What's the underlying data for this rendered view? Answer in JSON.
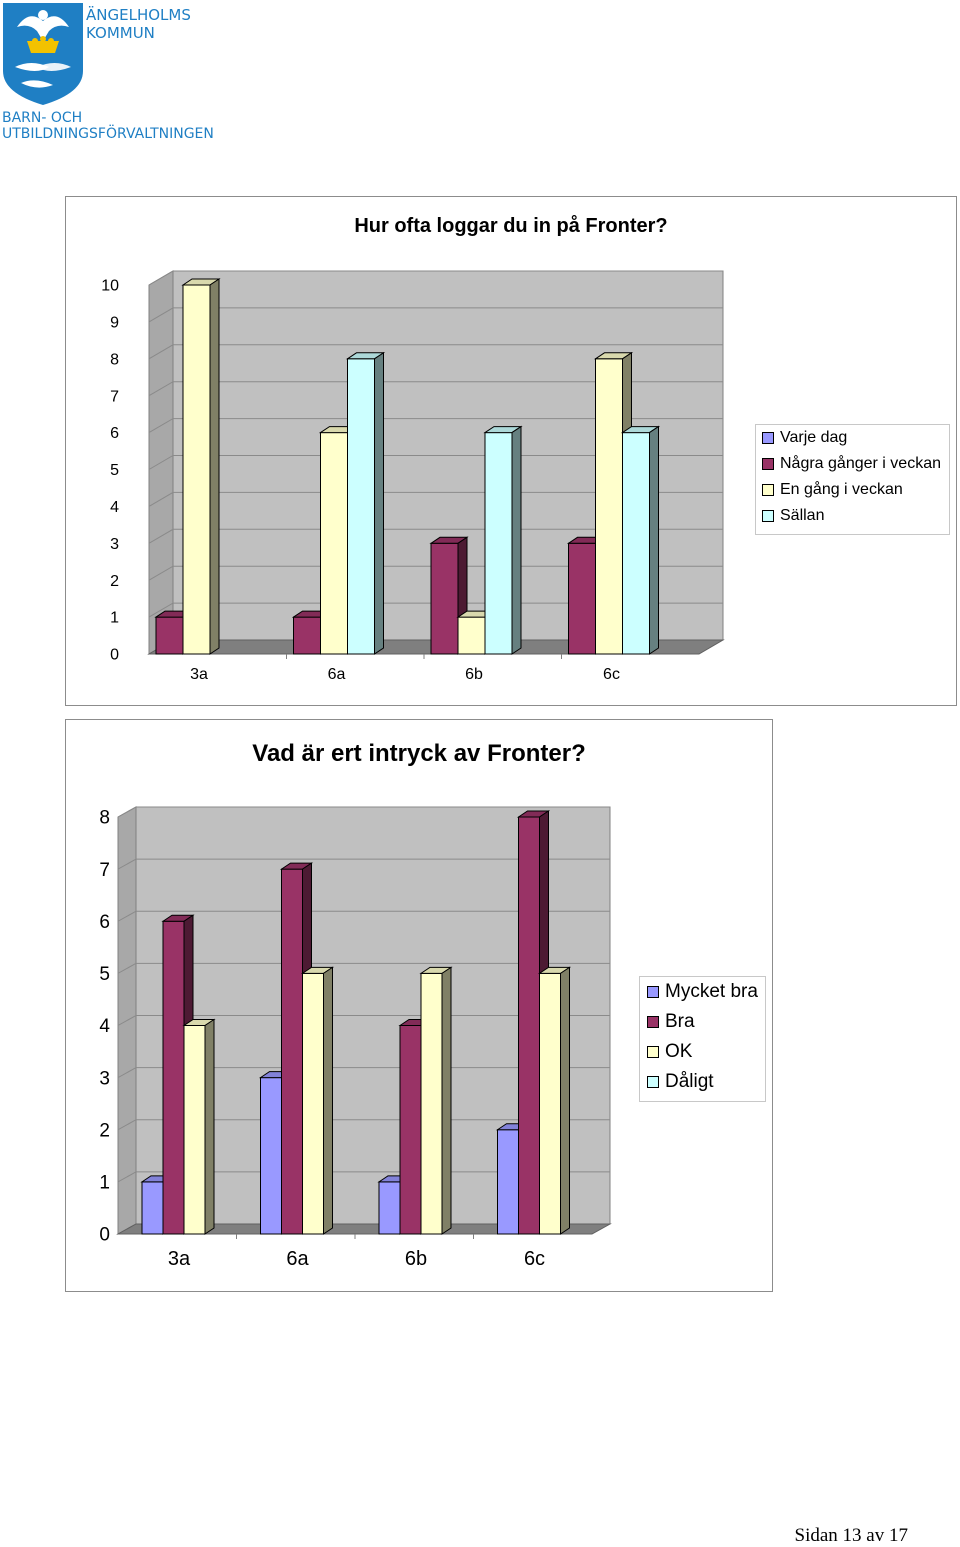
{
  "header": {
    "org_line1": "ÄNGELHOLMS",
    "org_line2": "KOMMUN",
    "dept_line1": "BARN- OCH",
    "dept_line2": "UTBILDNINGSFÖRVALTNINGEN",
    "brand_color": "#1f7fc4"
  },
  "chart_data": [
    {
      "type": "bar",
      "title": "Hur ofta loggar du in på Fronter?",
      "categories": [
        "3a",
        "6a",
        "6b",
        "6c"
      ],
      "ylim": [
        0,
        10
      ],
      "yticks": [
        "0",
        "1",
        "2",
        "3",
        "4",
        "5",
        "6",
        "7",
        "8",
        "9",
        "10"
      ],
      "grid": true,
      "legend_position": "right",
      "series": [
        {
          "name": "Varje dag",
          "values": [
            0,
            0,
            0,
            0
          ],
          "color": "#9999ff"
        },
        {
          "name": "Några gånger i veckan",
          "values": [
            1,
            1,
            3,
            3
          ],
          "color": "#993366"
        },
        {
          "name": "En gång i veckan",
          "values": [
            10,
            6,
            1,
            8
          ],
          "color": "#ffffcc"
        },
        {
          "name": "Sällan",
          "values": [
            0,
            8,
            6,
            6
          ],
          "color": "#ccffff"
        }
      ]
    },
    {
      "type": "bar",
      "title": "Vad är ert intryck av Fronter?",
      "categories": [
        "3a",
        "6a",
        "6b",
        "6c"
      ],
      "ylim": [
        0,
        8
      ],
      "yticks": [
        "0",
        "1",
        "2",
        "3",
        "4",
        "5",
        "6",
        "7",
        "8"
      ],
      "grid": true,
      "legend_position": "right",
      "series": [
        {
          "name": "Mycket bra",
          "values": [
            1,
            3,
            1,
            2
          ],
          "color": "#9999ff"
        },
        {
          "name": "Bra",
          "values": [
            6,
            7,
            4,
            8
          ],
          "color": "#993366"
        },
        {
          "name": "OK",
          "values": [
            4,
            5,
            5,
            5
          ],
          "color": "#ffffcc"
        },
        {
          "name": "Dåligt",
          "values": [
            0,
            0,
            0,
            0
          ],
          "color": "#ccffff"
        }
      ]
    }
  ],
  "footer": {
    "page_label": "Sidan 13 av 17"
  }
}
